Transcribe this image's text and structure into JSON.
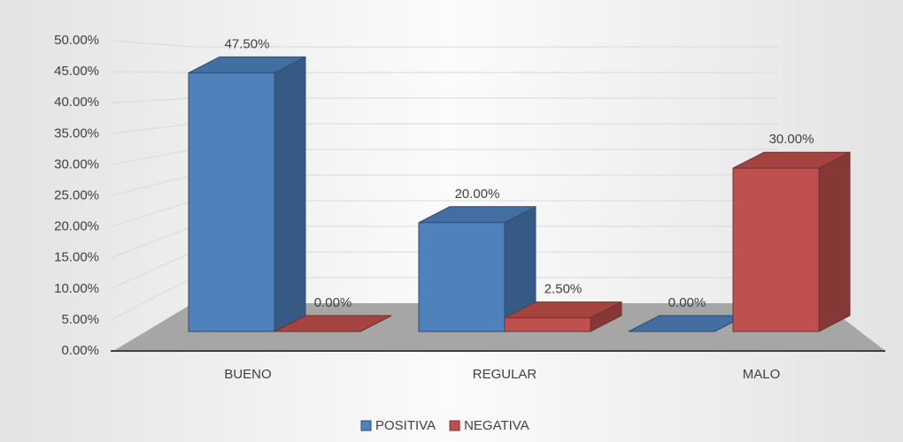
{
  "chart_data": {
    "type": "bar3d",
    "categories": [
      "BUENO",
      "REGULAR",
      "MALO"
    ],
    "series": [
      {
        "name": "POSITIVA",
        "color": "#4f81bd",
        "values": [
          47.5,
          20,
          0
        ],
        "value_labels": [
          "47.50%",
          "20.00%",
          "0.00%"
        ]
      },
      {
        "name": "NEGATIVA",
        "color": "#c0504d",
        "values": [
          0,
          2.5,
          30
        ],
        "value_labels": [
          "0.00%",
          "2.50%",
          "30.00%"
        ]
      }
    ],
    "ylim": [
      0,
      50
    ],
    "yticks": [
      {
        "value": 0,
        "label": "0.00%"
      },
      {
        "value": 5,
        "label": "5.00%"
      },
      {
        "value": 10,
        "label": "10.00%"
      },
      {
        "value": 15,
        "label": "15.00%"
      },
      {
        "value": 20,
        "label": "20.00%"
      },
      {
        "value": 25,
        "label": "25.00%"
      },
      {
        "value": 30,
        "label": "30.00%"
      },
      {
        "value": 35,
        "label": "35.00%"
      },
      {
        "value": 40,
        "label": "40.00%"
      },
      {
        "value": 45,
        "label": "45.00%"
      },
      {
        "value": 50,
        "label": "50.00%"
      }
    ],
    "grid": true,
    "legend": "bottom"
  }
}
